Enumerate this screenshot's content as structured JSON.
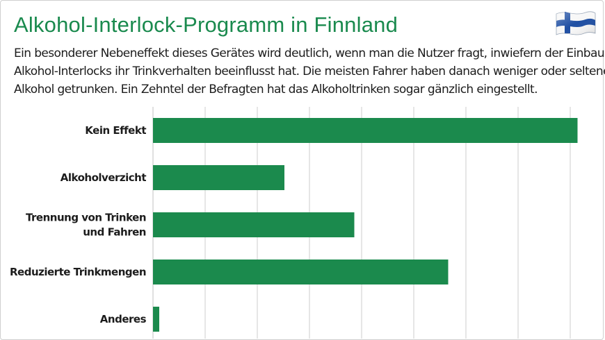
{
  "title": "Alkohol-Interlock-Programm in Finnland",
  "description_lines": [
    "Ein besonderer Nebeneffekt dieses Gerätes wird deutlich, wenn man die Nutzer fragt, inwiefern der Einbau des",
    "Alkohol-Interlocks ihr Trinkverhalten beeinflusst hat. Die meisten Fahrer haben danach weniger oder seltener",
    "Alkohol getrunken. Ein Zehntel der Befragten hat das Alkoholtrinken sogar gänzlich eingestellt."
  ],
  "flag_icon": "finland-flag-icon",
  "colors": {
    "title": "#1a8a4e",
    "bar": "#1b8a4d",
    "grid": "#cccccc"
  },
  "chart_data": {
    "type": "bar",
    "orientation": "horizontal",
    "categories": [
      [
        "Kein Effekt"
      ],
      [
        "Alkoholverzicht"
      ],
      [
        "Trennung von Trinken",
        "und Fahren"
      ],
      [
        "Reduzierte Trinkmengen"
      ],
      [
        "Anderes"
      ]
    ],
    "values": [
      40.7,
      12.6,
      19.3,
      28.3,
      0.6
    ],
    "xlim": [
      0,
      40
    ],
    "grid_step": 5,
    "grid": true,
    "title": "",
    "xlabel": "",
    "ylabel": ""
  }
}
